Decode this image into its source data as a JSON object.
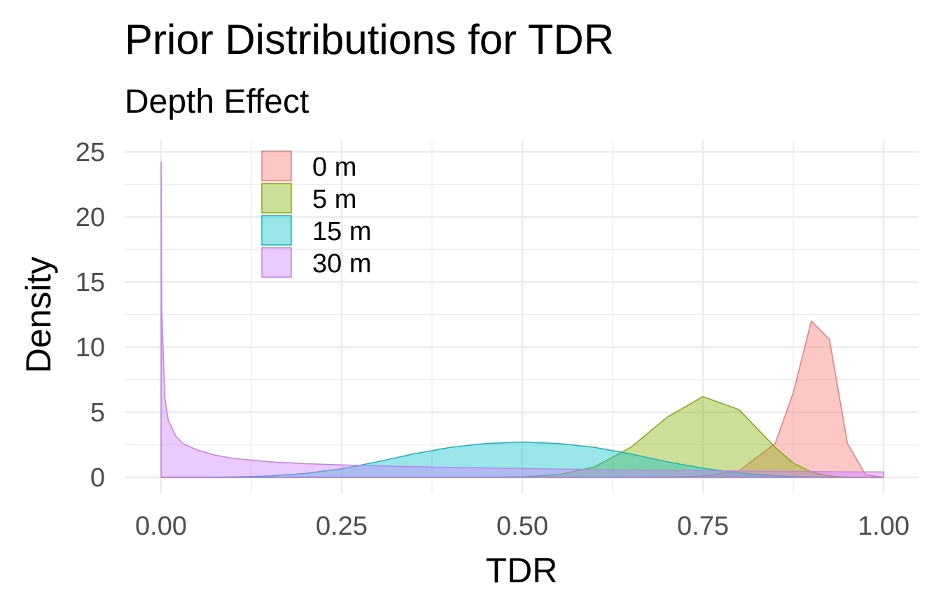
{
  "chart_data": {
    "type": "area",
    "title": "Prior Distributions for TDR",
    "subtitle": "Depth Effect",
    "xlabel": "TDR",
    "ylabel": "Density",
    "xlim": [
      0,
      1
    ],
    "ylim": [
      0,
      25
    ],
    "xticks": [
      0,
      0.25,
      0.5,
      0.75,
      1
    ],
    "xtick_labels": [
      "0.00",
      "0.25",
      "0.50",
      "0.75",
      "1.00"
    ],
    "yticks": [
      0,
      5,
      10,
      15,
      20,
      25
    ],
    "ytick_labels": [
      "0",
      "5",
      "10",
      "15",
      "20",
      "25"
    ],
    "grid": true,
    "legend_position": "top-left",
    "x": [
      0.0001,
      0.001,
      0.005,
      0.01,
      0.02,
      0.03,
      0.05,
      0.075,
      0.1,
      0.15,
      0.2,
      0.25,
      0.3,
      0.35,
      0.4,
      0.45,
      0.5,
      0.55,
      0.6,
      0.65,
      0.7,
      0.75,
      0.8,
      0.85,
      0.875,
      0.9,
      0.925,
      0.95,
      0.975,
      1.0
    ],
    "series": [
      {
        "name": "0 m",
        "color": "#F8766D",
        "values": [
          0,
          0,
          0,
          0,
          0,
          0,
          0,
          0,
          0,
          0,
          0,
          0,
          0,
          0,
          0,
          0,
          0,
          0,
          0,
          0,
          0.01,
          0.1,
          0.5,
          2.6,
          6.5,
          12.0,
          10.6,
          2.6,
          0.2,
          0
        ]
      },
      {
        "name": "5 m",
        "color": "#7CAE00",
        "values": [
          0,
          0,
          0,
          0,
          0,
          0,
          0,
          0,
          0,
          0,
          0,
          0,
          0,
          0,
          0,
          0,
          0.05,
          0.2,
          0.8,
          2.3,
          4.6,
          6.2,
          5.2,
          2.3,
          1.1,
          0.4,
          0.1,
          0.02,
          0,
          0
        ]
      },
      {
        "name": "15 m",
        "color": "#00BFC4",
        "values": [
          0,
          0,
          0,
          0,
          0,
          0,
          0,
          0.01,
          0.03,
          0.1,
          0.3,
          0.65,
          1.2,
          1.8,
          2.3,
          2.6,
          2.7,
          2.6,
          2.3,
          1.8,
          1.2,
          0.7,
          0.35,
          0.12,
          0.06,
          0.02,
          0.01,
          0,
          0,
          0
        ]
      },
      {
        "name": "30 m",
        "color": "#C77CFF",
        "values": [
          24.2,
          13.0,
          6.2,
          4.4,
          3.2,
          2.6,
          2.1,
          1.7,
          1.45,
          1.2,
          1.05,
          0.95,
          0.88,
          0.82,
          0.76,
          0.72,
          0.68,
          0.64,
          0.6,
          0.57,
          0.54,
          0.51,
          0.48,
          0.46,
          0.45,
          0.44,
          0.43,
          0.42,
          0.42,
          0.42
        ]
      }
    ]
  }
}
